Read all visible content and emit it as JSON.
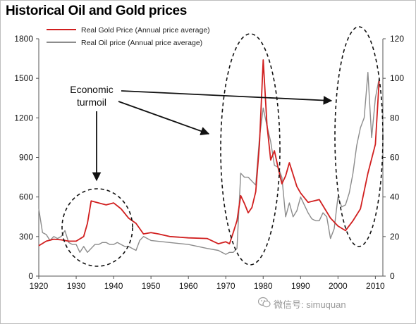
{
  "title": "Historical Oil and Gold prices",
  "watermark": "微信号: simuquan",
  "chart_data": {
    "type": "line",
    "title": "Historical Oil and Gold prices",
    "x_ticks": [
      1920,
      1930,
      1940,
      1950,
      1960,
      1970,
      1980,
      1990,
      2000,
      2010
    ],
    "xlim": [
      1920,
      2012
    ],
    "y_left_ticks": [
      0,
      300,
      600,
      900,
      1200,
      1500,
      1800
    ],
    "ylim_left": [
      0,
      1800
    ],
    "y_right_ticks": [
      0,
      20,
      40,
      60,
      80,
      100,
      120
    ],
    "ylim_right": [
      0,
      120
    ],
    "legend_position": "top-left",
    "series": [
      {
        "name": "Real Gold Price (Annual price average)",
        "axis": "left",
        "color": "#d11f1f",
        "x": [
          1920,
          1922,
          1924,
          1926,
          1928,
          1930,
          1932,
          1933,
          1934,
          1936,
          1938,
          1940,
          1942,
          1944,
          1946,
          1948,
          1950,
          1952,
          1955,
          1960,
          1965,
          1968,
          1970,
          1971,
          1972,
          1973,
          1974,
          1975,
          1976,
          1977,
          1978,
          1979,
          1980,
          1981,
          1982,
          1983,
          1984,
          1985,
          1986,
          1987,
          1988,
          1989,
          1990,
          1992,
          1995,
          1998,
          2000,
          2002,
          2004,
          2006,
          2008,
          2010,
          2011
        ],
        "y": [
          230,
          265,
          280,
          275,
          265,
          265,
          300,
          400,
          570,
          555,
          540,
          555,
          510,
          440,
          400,
          320,
          330,
          320,
          300,
          290,
          285,
          245,
          260,
          245,
          330,
          420,
          610,
          550,
          480,
          520,
          640,
          1000,
          1640,
          1150,
          880,
          950,
          820,
          700,
          760,
          860,
          770,
          680,
          630,
          560,
          580,
          440,
          380,
          345,
          420,
          510,
          780,
          1000,
          1480
        ]
      },
      {
        "name": "Real Oil  price (Annual price average)",
        "axis": "right",
        "color": "#8c8c8c",
        "x": [
          1920,
          1921,
          1922,
          1923,
          1924,
          1925,
          1926,
          1927,
          1928,
          1929,
          1930,
          1931,
          1932,
          1933,
          1934,
          1935,
          1936,
          1937,
          1938,
          1939,
          1940,
          1941,
          1942,
          1943,
          1944,
          1945,
          1946,
          1947,
          1948,
          1950,
          1955,
          1960,
          1965,
          1968,
          1970,
          1971,
          1972,
          1973,
          1974,
          1975,
          1976,
          1977,
          1978,
          1979,
          1980,
          1981,
          1982,
          1983,
          1984,
          1985,
          1986,
          1987,
          1988,
          1989,
          1990,
          1991,
          1992,
          1993,
          1994,
          1995,
          1996,
          1997,
          1998,
          1999,
          2000,
          2001,
          2002,
          2003,
          2004,
          2005,
          2006,
          2007,
          2008,
          2009,
          2010,
          2011
        ],
        "y": [
          34,
          22,
          21,
          18,
          20,
          19,
          20,
          23,
          17,
          16,
          16,
          12,
          15,
          12,
          14,
          16,
          16,
          17,
          17,
          16,
          16,
          17,
          16,
          15,
          15,
          14,
          13,
          18,
          20,
          18,
          17,
          16,
          14,
          13,
          11,
          12,
          12,
          14,
          52,
          50,
          50,
          48,
          46,
          70,
          85,
          76,
          68,
          56,
          55,
          50,
          30,
          37,
          30,
          33,
          40,
          36,
          32,
          29,
          28,
          28,
          32,
          30,
          19,
          24,
          40,
          35,
          36,
          42,
          52,
          66,
          75,
          80,
          103,
          70,
          90,
          100
        ]
      }
    ],
    "annotations": [
      "Economic turmoil"
    ]
  }
}
